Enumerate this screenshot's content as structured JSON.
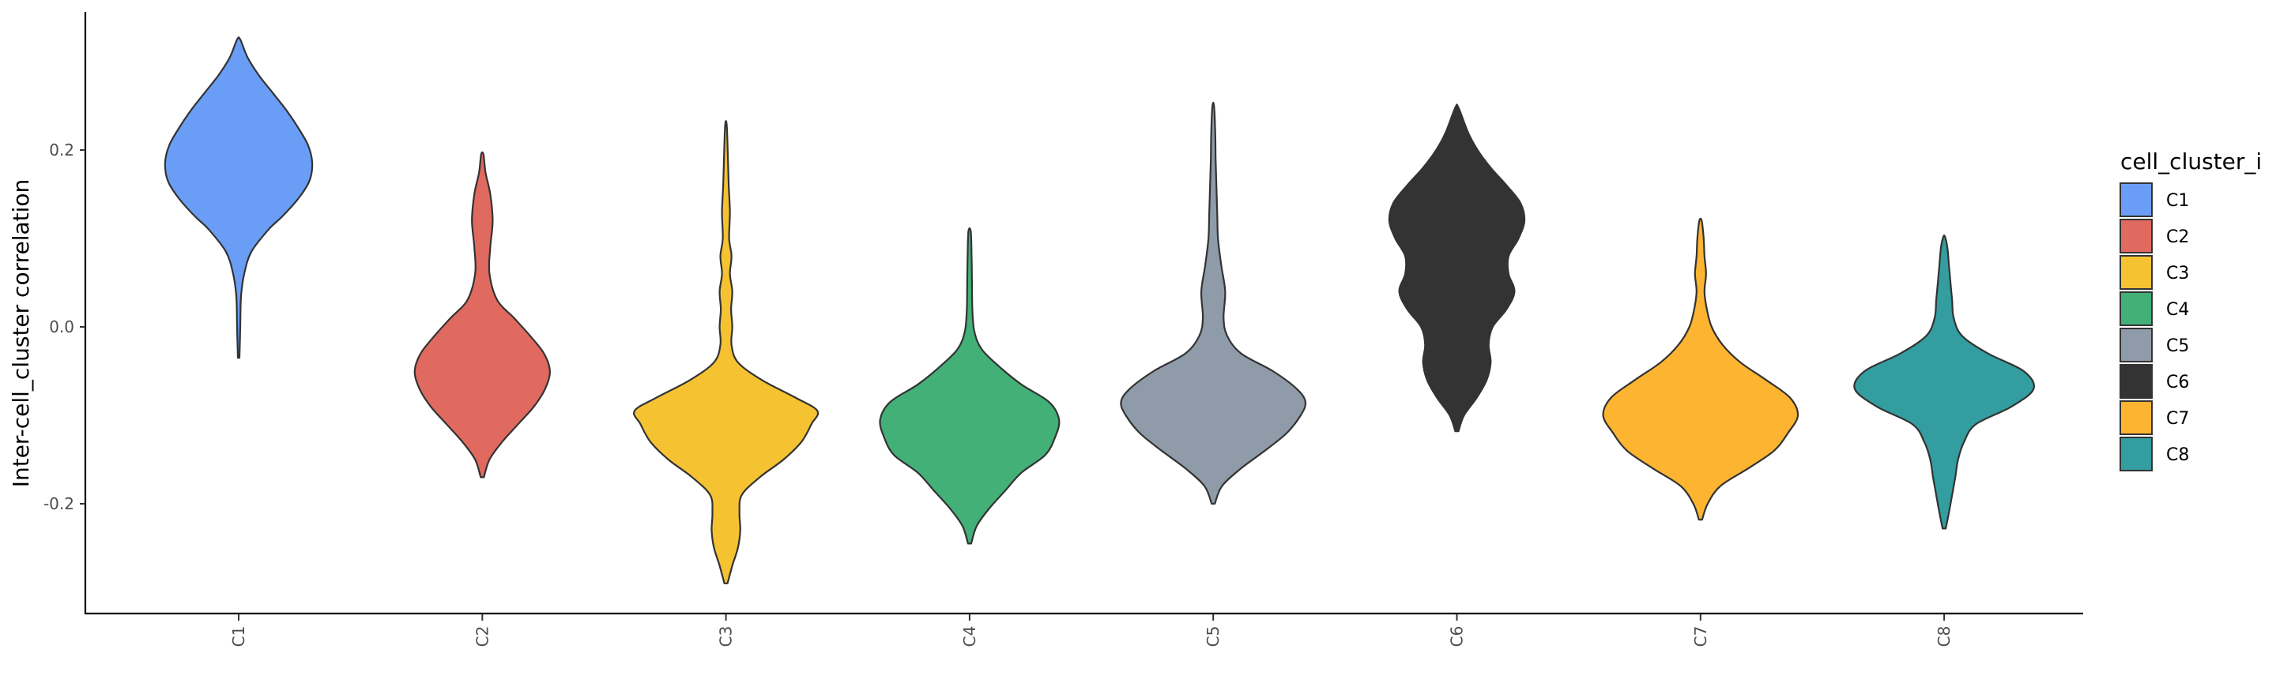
{
  "chart_data": {
    "type": "violin",
    "title": "",
    "xlabel": "",
    "ylabel": "Inter-cell_cluster correlation",
    "ylim": [
      -0.33,
      0.36
    ],
    "yticks": [
      -0.2,
      0.0,
      0.2
    ],
    "ytick_labels": [
      "-0.2",
      "0.0",
      "0.2"
    ],
    "grid": false,
    "legend": {
      "title": "cell_cluster_i",
      "position": "right"
    },
    "categories": [
      "C1",
      "C2",
      "C3",
      "C4",
      "C5",
      "C6",
      "C7",
      "C8"
    ],
    "series": [
      {
        "name": "C1",
        "color": "#6A9EF6",
        "min": -0.035,
        "max": 0.325,
        "profile": [
          [
            -0.035,
            0.002
          ],
          [
            0.0,
            0.004
          ],
          [
            0.035,
            0.006
          ],
          [
            0.06,
            0.014
          ],
          [
            0.085,
            0.032
          ],
          [
            0.11,
            0.075
          ],
          [
            0.125,
            0.11
          ],
          [
            0.145,
            0.15
          ],
          [
            0.165,
            0.178
          ],
          [
            0.185,
            0.185
          ],
          [
            0.205,
            0.175
          ],
          [
            0.225,
            0.15
          ],
          [
            0.245,
            0.12
          ],
          [
            0.265,
            0.085
          ],
          [
            0.285,
            0.05
          ],
          [
            0.305,
            0.022
          ],
          [
            0.325,
            0.004
          ]
        ]
      },
      {
        "name": "C2",
        "color": "#E06A60",
        "min": -0.17,
        "max": 0.195,
        "profile": [
          [
            -0.17,
            0.004
          ],
          [
            -0.15,
            0.018
          ],
          [
            -0.13,
            0.05
          ],
          [
            -0.11,
            0.09
          ],
          [
            -0.09,
            0.13
          ],
          [
            -0.07,
            0.158
          ],
          [
            -0.05,
            0.17
          ],
          [
            -0.03,
            0.155
          ],
          [
            -0.01,
            0.12
          ],
          [
            0.01,
            0.08
          ],
          [
            0.03,
            0.038
          ],
          [
            0.06,
            0.018
          ],
          [
            0.09,
            0.02
          ],
          [
            0.12,
            0.026
          ],
          [
            0.15,
            0.02
          ],
          [
            0.175,
            0.008
          ],
          [
            0.195,
            0.003
          ]
        ]
      },
      {
        "name": "C3",
        "color": "#F5C232",
        "min": -0.29,
        "max": 0.228,
        "profile": [
          [
            -0.29,
            0.004
          ],
          [
            -0.27,
            0.016
          ],
          [
            -0.25,
            0.03
          ],
          [
            -0.23,
            0.036
          ],
          [
            -0.21,
            0.034
          ],
          [
            -0.19,
            0.04
          ],
          [
            -0.17,
            0.085
          ],
          [
            -0.15,
            0.145
          ],
          [
            -0.13,
            0.19
          ],
          [
            -0.11,
            0.215
          ],
          [
            -0.095,
            0.23
          ],
          [
            -0.08,
            0.175
          ],
          [
            -0.06,
            0.09
          ],
          [
            -0.04,
            0.03
          ],
          [
            -0.02,
            0.014
          ],
          [
            0.0,
            0.016
          ],
          [
            0.02,
            0.013
          ],
          [
            0.04,
            0.016
          ],
          [
            0.06,
            0.01
          ],
          [
            0.08,
            0.014
          ],
          [
            0.1,
            0.008
          ],
          [
            0.13,
            0.01
          ],
          [
            0.16,
            0.007
          ],
          [
            0.19,
            0.005
          ],
          [
            0.228,
            0.002
          ]
        ]
      },
      {
        "name": "C4",
        "color": "#42B077",
        "min": -0.245,
        "max": 0.108,
        "profile": [
          [
            -0.245,
            0.004
          ],
          [
            -0.225,
            0.018
          ],
          [
            -0.205,
            0.05
          ],
          [
            -0.185,
            0.09
          ],
          [
            -0.165,
            0.13
          ],
          [
            -0.145,
            0.19
          ],
          [
            -0.125,
            0.215
          ],
          [
            -0.105,
            0.225
          ],
          [
            -0.085,
            0.2
          ],
          [
            -0.065,
            0.13
          ],
          [
            -0.045,
            0.075
          ],
          [
            -0.025,
            0.03
          ],
          [
            -0.005,
            0.012
          ],
          [
            0.02,
            0.007
          ],
          [
            0.05,
            0.006
          ],
          [
            0.08,
            0.005
          ],
          [
            0.108,
            0.003
          ]
        ]
      },
      {
        "name": "C5",
        "color": "#8F9BA8",
        "min": -0.2,
        "max": 0.25,
        "profile": [
          [
            -0.2,
            0.004
          ],
          [
            -0.18,
            0.022
          ],
          [
            -0.16,
            0.07
          ],
          [
            -0.14,
            0.13
          ],
          [
            -0.12,
            0.185
          ],
          [
            -0.1,
            0.22
          ],
          [
            -0.085,
            0.232
          ],
          [
            -0.07,
            0.21
          ],
          [
            -0.05,
            0.15
          ],
          [
            -0.03,
            0.07
          ],
          [
            -0.01,
            0.035
          ],
          [
            0.01,
            0.026
          ],
          [
            0.04,
            0.03
          ],
          [
            0.07,
            0.02
          ],
          [
            0.1,
            0.012
          ],
          [
            0.13,
            0.01
          ],
          [
            0.16,
            0.008
          ],
          [
            0.19,
            0.006
          ],
          [
            0.22,
            0.005
          ],
          [
            0.25,
            0.002
          ]
        ]
      },
      {
        "name": "C6",
        "color": "#333333",
        "min": -0.118,
        "max": 0.248,
        "profile": [
          [
            -0.118,
            0.004
          ],
          [
            -0.1,
            0.018
          ],
          [
            -0.08,
            0.05
          ],
          [
            -0.06,
            0.075
          ],
          [
            -0.04,
            0.085
          ],
          [
            -0.02,
            0.08
          ],
          [
            0.0,
            0.09
          ],
          [
            0.02,
            0.125
          ],
          [
            0.04,
            0.145
          ],
          [
            0.06,
            0.13
          ],
          [
            0.08,
            0.13
          ],
          [
            0.1,
            0.155
          ],
          [
            0.12,
            0.17
          ],
          [
            0.14,
            0.16
          ],
          [
            0.16,
            0.125
          ],
          [
            0.18,
            0.085
          ],
          [
            0.2,
            0.052
          ],
          [
            0.22,
            0.028
          ],
          [
            0.248,
            0.004
          ]
        ]
      },
      {
        "name": "C7",
        "color": "#FDB431",
        "min": -0.218,
        "max": 0.12,
        "profile": [
          [
            -0.218,
            0.004
          ],
          [
            -0.2,
            0.018
          ],
          [
            -0.18,
            0.05
          ],
          [
            -0.16,
            0.12
          ],
          [
            -0.14,
            0.185
          ],
          [
            -0.12,
            0.22
          ],
          [
            -0.1,
            0.245
          ],
          [
            -0.08,
            0.225
          ],
          [
            -0.06,
            0.165
          ],
          [
            -0.04,
            0.1
          ],
          [
            -0.02,
            0.055
          ],
          [
            0.0,
            0.028
          ],
          [
            0.02,
            0.016
          ],
          [
            0.04,
            0.01
          ],
          [
            0.06,
            0.014
          ],
          [
            0.08,
            0.01
          ],
          [
            0.1,
            0.008
          ],
          [
            0.12,
            0.003
          ]
        ]
      },
      {
        "name": "C8",
        "color": "#339D9F",
        "min": -0.228,
        "max": 0.102,
        "profile": [
          [
            -0.228,
            0.004
          ],
          [
            -0.21,
            0.012
          ],
          [
            -0.19,
            0.02
          ],
          [
            -0.17,
            0.028
          ],
          [
            -0.15,
            0.035
          ],
          [
            -0.13,
            0.05
          ],
          [
            -0.11,
            0.08
          ],
          [
            -0.09,
            0.17
          ],
          [
            -0.07,
            0.225
          ],
          [
            -0.05,
            0.2
          ],
          [
            -0.03,
            0.11
          ],
          [
            -0.01,
            0.045
          ],
          [
            0.01,
            0.024
          ],
          [
            0.03,
            0.02
          ],
          [
            0.05,
            0.016
          ],
          [
            0.07,
            0.012
          ],
          [
            0.09,
            0.008
          ],
          [
            0.102,
            0.002
          ]
        ]
      }
    ]
  }
}
